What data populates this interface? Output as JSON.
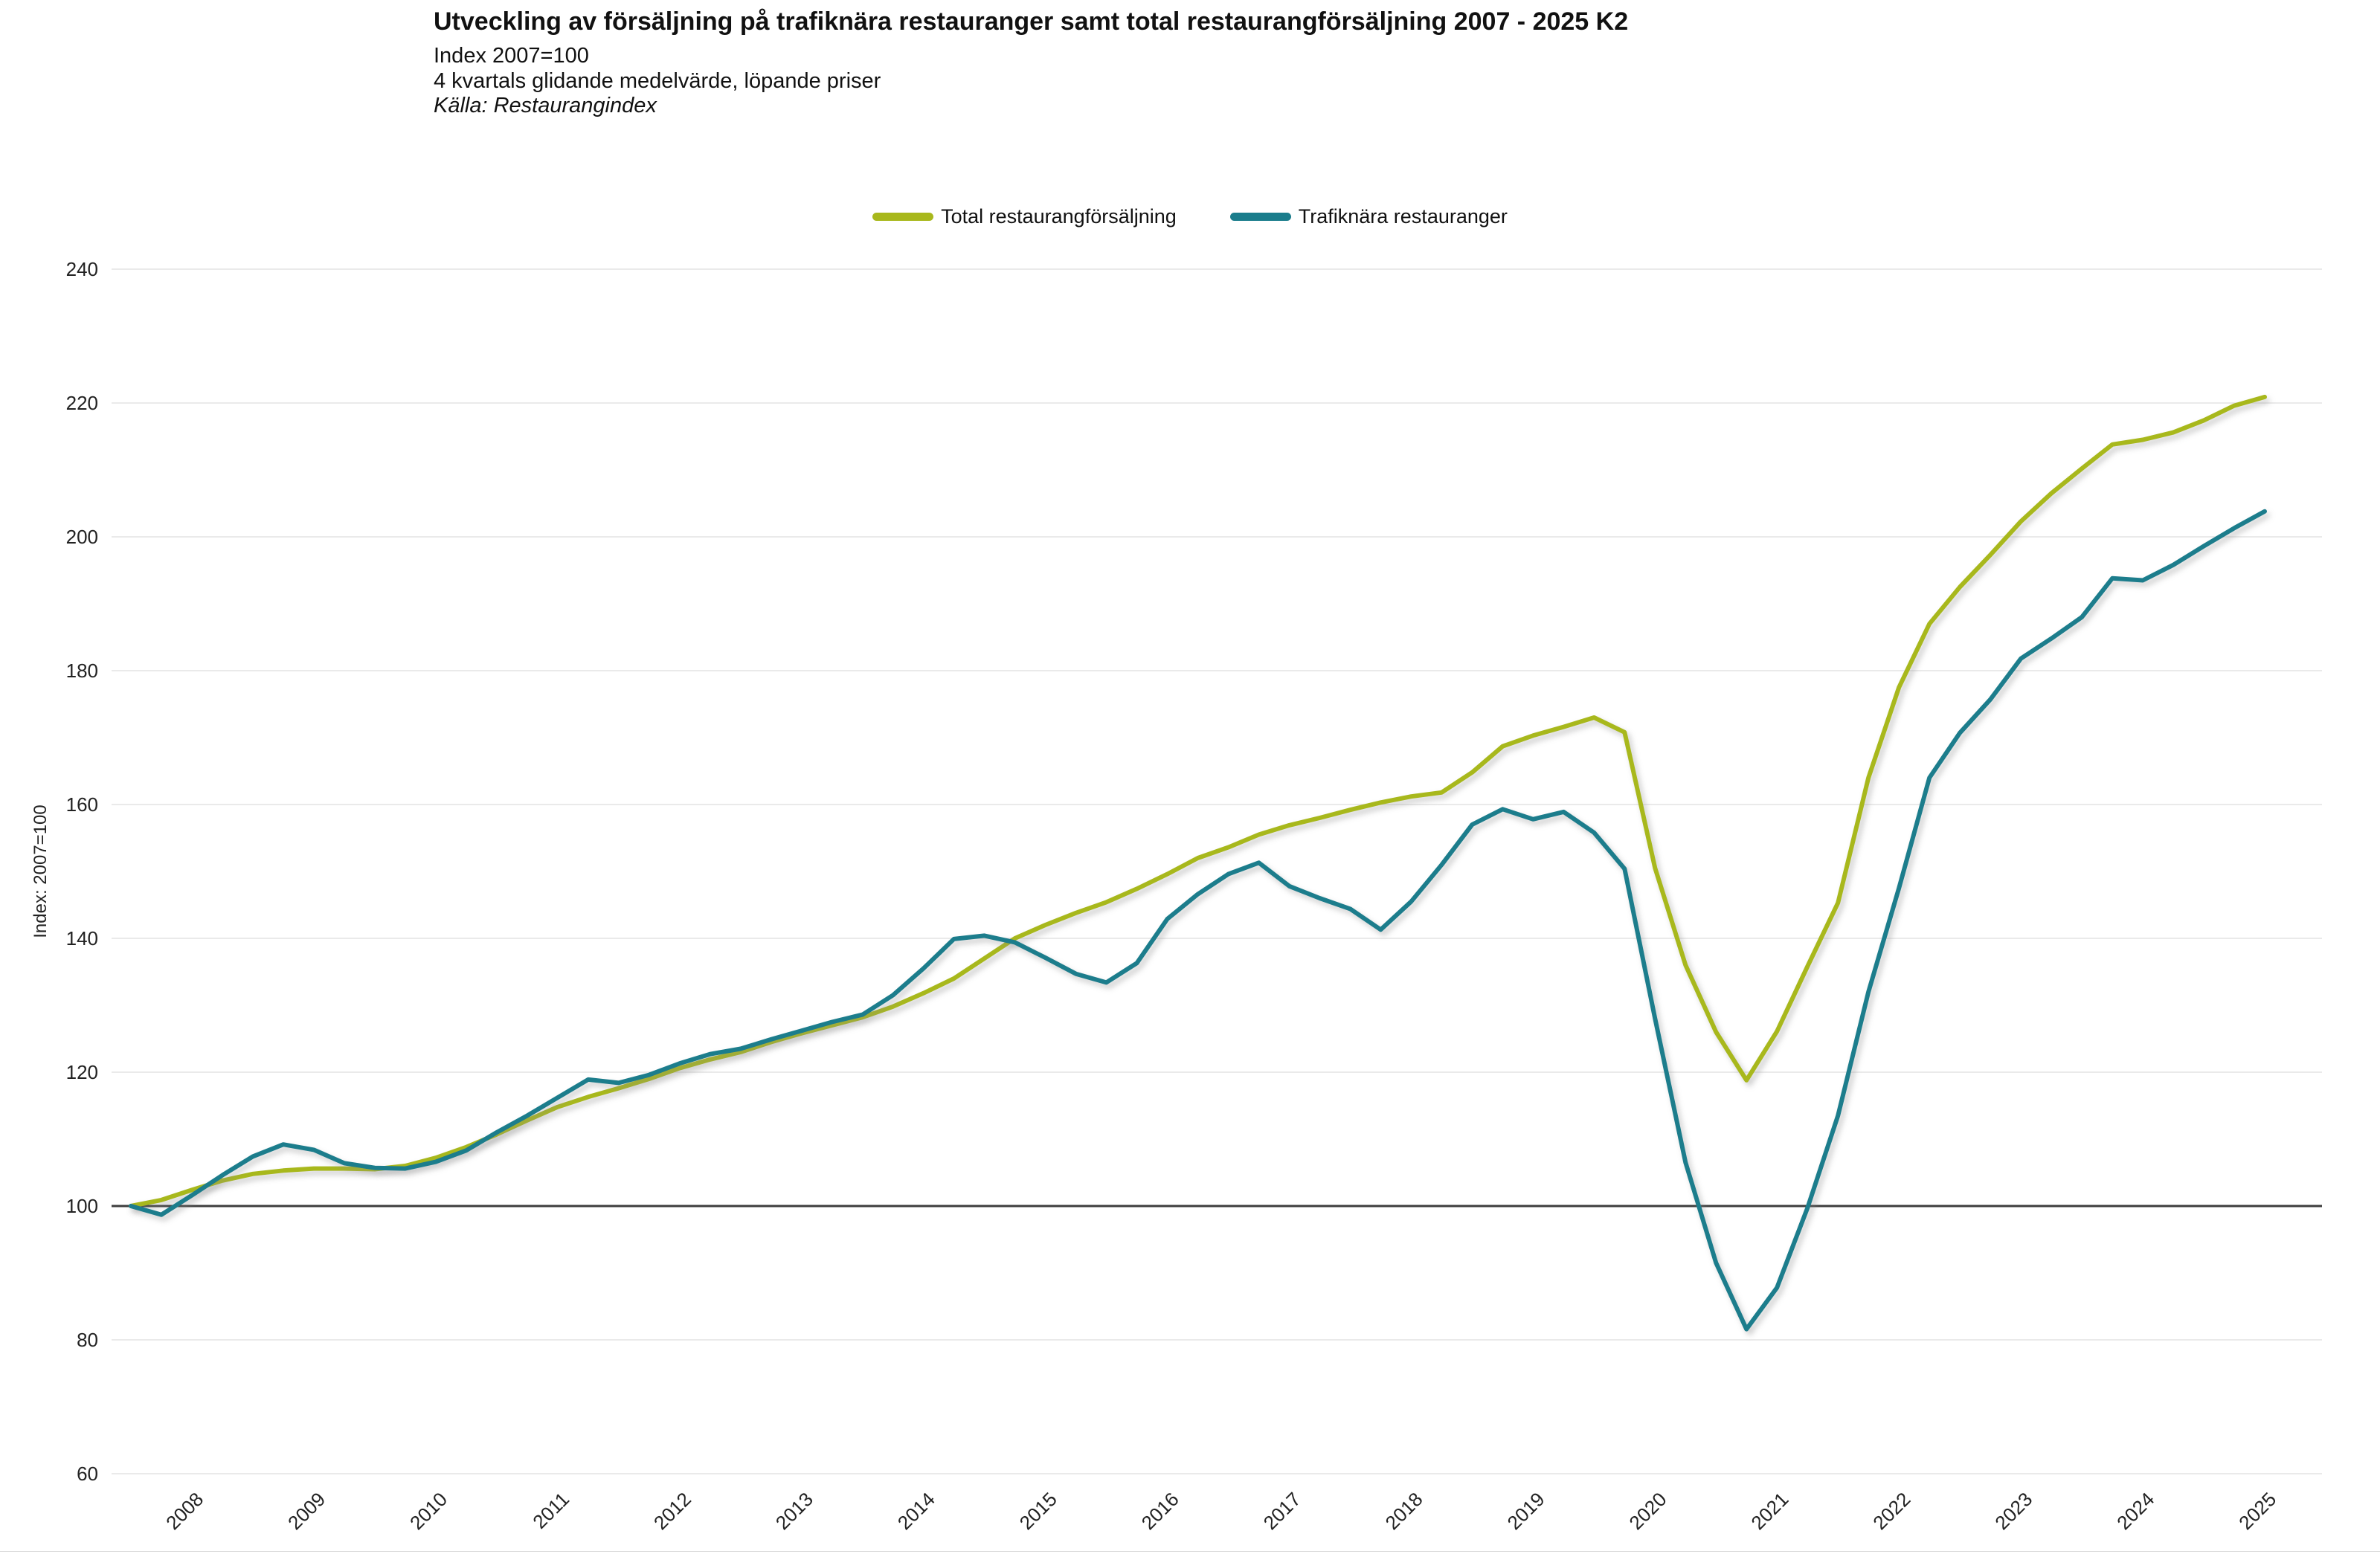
{
  "header": {
    "title": "Utveckling av försäljning på trafiknära restauranger samt total restaurangförsäljning 2007 - 2025 K2",
    "subtitle_index": "Index 2007=100",
    "subtitle_method": "4 kvartals glidande medelvärde, löpande priser",
    "source": "Källa: Restaurangindex"
  },
  "colors": {
    "total": "#a8b81c",
    "trafiknara": "#1a7d8c",
    "baseline": "#3d3d3d",
    "grid": "#e3e3e3"
  },
  "chart_data": {
    "type": "line",
    "title": "Utveckling av försäljning på trafiknära restauranger samt total restaurangförsäljning 2007 - 2025 K2",
    "subtitle": "Index 2007=100",
    "note": "4 kvartals glidande medelvärde, löpande priser",
    "source": "Källa: Restaurangindex",
    "legend_position": "top-center",
    "grid": true,
    "x_axis": {
      "start_quarter": "2007 K4",
      "end_quarter": "2025 K2",
      "quarters_per_year": 4,
      "year_labels": [
        "2008",
        "2009",
        "2010",
        "2011",
        "2012",
        "2013",
        "2014",
        "2015",
        "2016",
        "2017",
        "2018",
        "2019",
        "2020",
        "2021",
        "2022",
        "2023",
        "2024",
        "2025"
      ]
    },
    "y_axis": {
      "label": "Index: 2007=100",
      "min": 60,
      "max": 240,
      "ticks": [
        60,
        80,
        100,
        120,
        140,
        160,
        180,
        200,
        220,
        240
      ],
      "baseline": 100
    },
    "series": [
      {
        "name": "Total restaurangförsäljning",
        "color": "#a8b81c",
        "values": [
          100.0,
          100.9,
          102.4,
          103.8,
          104.8,
          105.3,
          105.6,
          105.6,
          105.5,
          106.0,
          107.2,
          108.8,
          110.7,
          112.8,
          114.8,
          116.3,
          117.6,
          119.0,
          120.6,
          121.9,
          123.0,
          124.5,
          125.8,
          127.0,
          128.2,
          129.8,
          131.8,
          134.0,
          137.0,
          140.0,
          142.0,
          143.8,
          145.4,
          147.4,
          149.6,
          152.0,
          153.6,
          155.5,
          156.9,
          158.0,
          159.2,
          160.3,
          161.2,
          161.8,
          164.8,
          168.7,
          170.3,
          171.6,
          173.0,
          170.8,
          150.5,
          136.0,
          126.0,
          118.8,
          126.1,
          135.8,
          145.3,
          164.0,
          177.5,
          187.0,
          192.5,
          197.3,
          202.3,
          206.5,
          210.2,
          213.8,
          214.5,
          215.6,
          217.4,
          219.6,
          220.9
        ]
      },
      {
        "name": "Trafiknära restauranger",
        "color": "#1a7d8c",
        "values": [
          100.0,
          98.7,
          101.6,
          104.6,
          107.4,
          109.2,
          108.4,
          106.4,
          105.7,
          105.6,
          106.6,
          108.3,
          111.0,
          113.5,
          116.2,
          118.9,
          118.4,
          119.6,
          121.3,
          122.7,
          123.5,
          124.9,
          126.2,
          127.5,
          128.6,
          131.5,
          135.5,
          139.9,
          140.4,
          139.4,
          137.1,
          134.7,
          133.4,
          136.3,
          142.9,
          146.6,
          149.6,
          151.3,
          147.8,
          146.0,
          144.4,
          141.3,
          145.5,
          151.0,
          157.0,
          159.3,
          157.8,
          158.9,
          155.8,
          150.4,
          128.0,
          106.5,
          91.5,
          81.6,
          87.8,
          99.7,
          113.5,
          132.0,
          147.5,
          164.0,
          170.7,
          175.7,
          181.8,
          184.8,
          188.0,
          193.8,
          193.5,
          195.8,
          198.6,
          201.3,
          203.8
        ]
      }
    ]
  }
}
